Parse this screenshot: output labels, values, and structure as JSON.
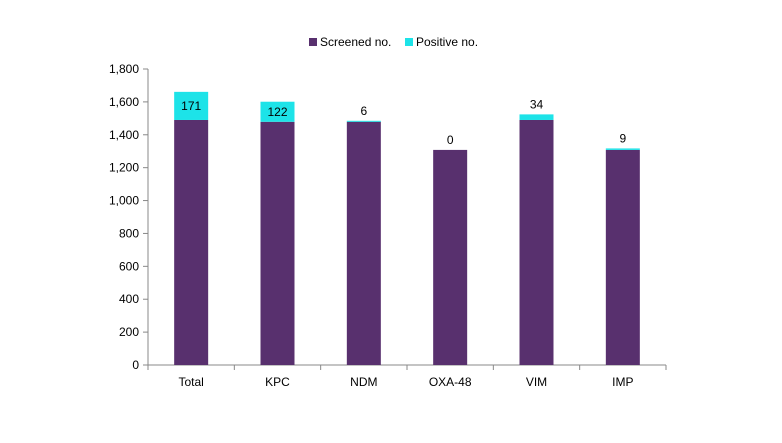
{
  "chart_data": {
    "type": "bar",
    "stacked": true,
    "categories": [
      "Total",
      "KPC",
      "NDM",
      "OXA-48",
      "VIM",
      "IMP"
    ],
    "series": [
      {
        "name": "Screened no.",
        "color": "#58306E",
        "values": [
          1490,
          1479,
          1479,
          1308,
          1490,
          1308
        ]
      },
      {
        "name": "Positive no.",
        "color": "#1DE3E8",
        "values": [
          171,
          122,
          6,
          0,
          34,
          9
        ]
      }
    ],
    "data_labels": [
      "171",
      "122",
      "6",
      "0",
      "34",
      "9"
    ],
    "ylim": [
      0,
      1800
    ],
    "yticks": [
      "0",
      "200",
      "400",
      "600",
      "800",
      "1,000",
      "1,200",
      "1,400",
      "1,600",
      "1,800"
    ],
    "ytick_values": [
      0,
      200,
      400,
      600,
      800,
      1000,
      1200,
      1400,
      1600,
      1800
    ],
    "legend_position": "top",
    "grid": false
  }
}
